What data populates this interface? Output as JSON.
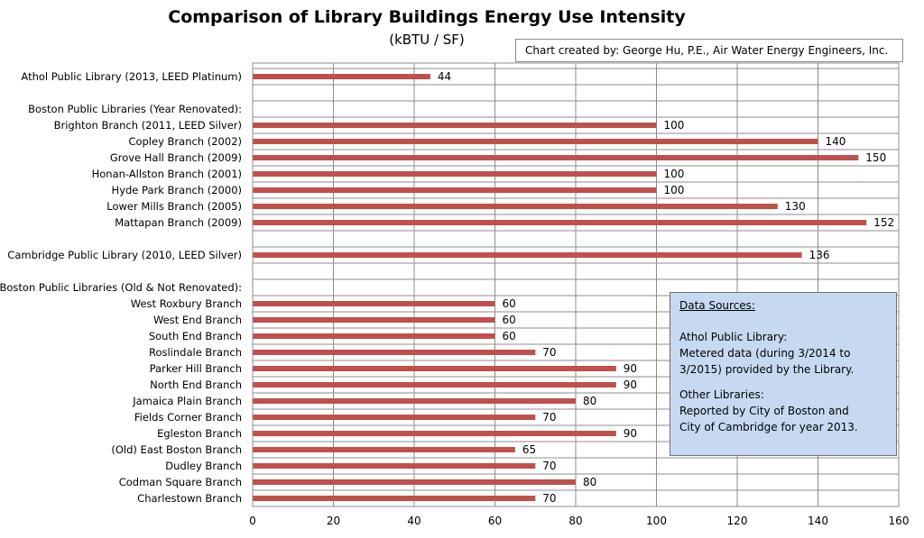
{
  "chart_data": {
    "type": "bar",
    "orientation": "horizontal",
    "title": "Comparison of Library Buildings Energy Use Intensity",
    "subtitle": "(kBTU / SF)",
    "categories": [
      "Athol Public Library (2013, LEED Platinum)",
      "",
      "Boston Public Libraries (Year Renovated):",
      "Brighton Branch (2011, LEED Silver)",
      "Copley Branch (2002)",
      "Grove Hall Branch (2009)",
      "Honan-Allston Branch (2001)",
      "Hyde Park Branch (2000)",
      "Lower Mills Branch (2005)",
      "Mattapan Branch (2009)",
      "",
      "Cambridge Public Library (2010, LEED Silver)",
      "",
      "Boston Public Libraries (Old & Not Renovated):",
      "West Roxbury Branch",
      "West End Branch",
      "South End Branch",
      "Roslindale Branch",
      "Parker Hill Branch",
      "North End Branch",
      "Jamaica Plain Branch",
      "Fields Corner Branch",
      "Egleston Branch",
      "(Old) East Boston Branch",
      "Dudley Branch",
      "Codman Square Branch",
      "Charlestown Branch"
    ],
    "values": [
      44,
      null,
      null,
      100,
      140,
      150,
      100,
      100,
      130,
      152,
      null,
      136,
      null,
      null,
      60,
      60,
      60,
      70,
      90,
      90,
      80,
      70,
      90,
      65,
      70,
      80,
      70
    ],
    "xlim": [
      0,
      160
    ],
    "xticks": [
      0,
      20,
      40,
      60,
      80,
      100,
      120,
      140,
      160
    ],
    "grid": true,
    "bar_color": "#c0504d"
  },
  "credit_text": "Chart created by: George Hu, P.E., Air Water Energy Engineers,  Inc.",
  "data_sources": {
    "title": "Data Sources:",
    "athol_heading": "Athol Public Library:",
    "athol_line1": "Metered data (during 3/2014 to",
    "athol_line2": "3/2015) provided by the Library.",
    "other_heading": "Other Libraries:",
    "other_line1": "Reported by City of Boston and",
    "other_line2": "City of Cambridge  for year 2013."
  }
}
